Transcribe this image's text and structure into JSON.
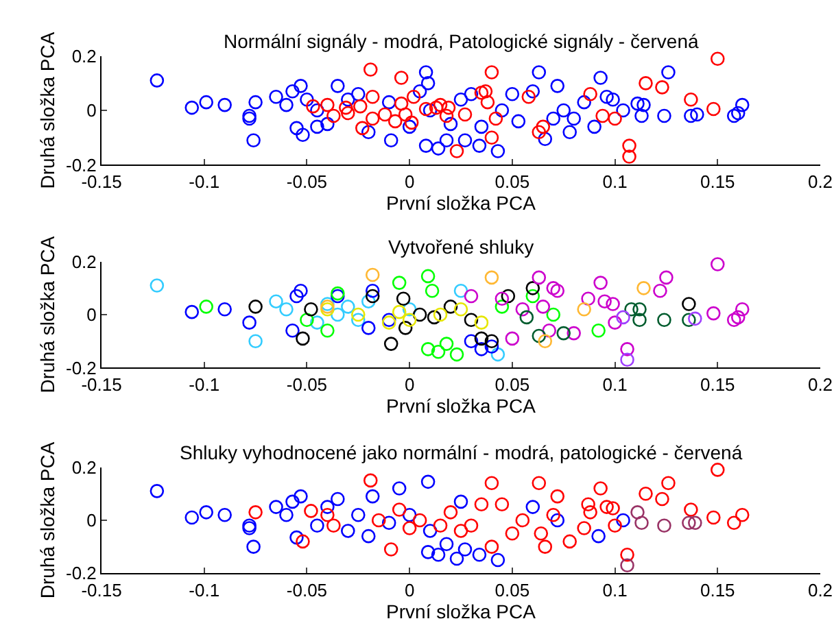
{
  "chart_data": [
    {
      "type": "scatter",
      "title": "Normální signály - modrá, Patologické signály - červená",
      "xlabel": "První složka PCA",
      "ylabel": "Druhá složka PCA",
      "xlim": [
        -0.15,
        0.2
      ],
      "xticks": [
        -0.15,
        -0.1,
        -0.05,
        0,
        0.05,
        0.1,
        0.15,
        0.2
      ],
      "ylim": [
        -0.2,
        0.2
      ],
      "yticks": [
        -0.2,
        0,
        0.2
      ],
      "marker": "circle",
      "series": [
        {
          "color": "#0000ff",
          "x": [
            -0.123,
            -0.106,
            -0.099,
            -0.09,
            -0.078,
            -0.078,
            -0.075,
            -0.076,
            -0.065,
            -0.06,
            -0.057,
            -0.055,
            -0.052,
            -0.053,
            0.008,
            0.009,
            -0.009,
            0.008,
            0.014,
            0.018,
            0.027,
            0.034,
            0.043,
            0.063,
            0.072,
            0.093,
            0.126,
            0.096,
            0.099,
            0.111,
            0.114,
            0.113,
            0.124,
            0.137,
            0.14,
            0.158,
            0.16,
            0.162,
            0.104,
            0.078,
            0.066,
            0.09,
            0.085,
            0.075,
            0.07,
            0.053,
            0.05,
            0.045,
            0.03,
            0.025,
            0.02,
            0.01,
            0.0,
            -0.01,
            -0.02,
            -0.03,
            -0.035,
            -0.04,
            -0.045,
            -0.05,
            -0.045,
            -0.025,
            0.005,
            0.035,
            0.06,
            0.08
          ],
          "values": [
            0.11,
            0.01,
            0.03,
            0.02,
            -0.03,
            -0.02,
            0.03,
            -0.11,
            0.05,
            0.02,
            0.07,
            -0.065,
            -0.09,
            0.09,
            0.14,
            0.1,
            -0.11,
            -0.13,
            -0.14,
            -0.11,
            -0.11,
            -0.13,
            -0.15,
            0.14,
            0.09,
            0.12,
            0.14,
            0.05,
            0.04,
            0.025,
            0.02,
            -0.02,
            -0.02,
            -0.02,
            -0.015,
            -0.02,
            -0.01,
            0.02,
            0.0,
            -0.08,
            -0.105,
            -0.06,
            0.03,
            0.0,
            -0.03,
            -0.04,
            0.06,
            0.0,
            0.06,
            0.04,
            -0.05,
            0.0,
            -0.06,
            0.03,
            -0.08,
            0.04,
            0.09,
            -0.05,
            0.0,
            0.04,
            -0.06,
            0.06,
            0.07,
            -0.06,
            0.07,
            -0.03
          ]
        },
        {
          "color": "#ff0000",
          "x": [
            -0.019,
            -0.004,
            0.04,
            0.15,
            0.115,
            0.123,
            0.137,
            0.148,
            0.088,
            0.058,
            0.035,
            0.037,
            0.038,
            0.042,
            0.04,
            0.023,
            0.065,
            0.063,
            0.094,
            0.1,
            0.107,
            0.107,
            -0.047,
            -0.04,
            -0.037,
            -0.031,
            -0.03,
            -0.024,
            -0.023,
            -0.018,
            -0.018,
            -0.012,
            -0.007,
            -0.004,
            -0.002,
            0.001,
            0.002,
            0.008,
            0.013,
            0.015,
            0.018,
            0.019,
            0.027
          ],
          "values": [
            0.15,
            0.12,
            0.14,
            0.19,
            0.1,
            0.085,
            0.04,
            0.005,
            0.06,
            0.05,
            0.065,
            0.07,
            0.03,
            -0.03,
            -0.1,
            -0.15,
            -0.06,
            -0.08,
            -0.02,
            -0.03,
            -0.13,
            -0.17,
            0.015,
            0.02,
            -0.02,
            0.01,
            -0.01,
            0.015,
            -0.065,
            0.05,
            -0.03,
            -0.015,
            -0.04,
            0.025,
            -0.015,
            -0.045,
            0.05,
            0.005,
            0.01,
            0.02,
            -0.02,
            0.01,
            -0.015
          ]
        }
      ]
    },
    {
      "type": "scatter",
      "title": "Vytvořené shluky",
      "xlabel": "První složka PCA",
      "ylabel": "Druhá složka PCA",
      "xlim": [
        -0.15,
        0.2
      ],
      "xticks": [
        -0.15,
        -0.1,
        -0.05,
        0,
        0.05,
        0.1,
        0.15,
        0.2
      ],
      "ylim": [
        -0.2,
        0.2
      ],
      "yticks": [
        -0.2,
        0,
        0.2
      ],
      "marker": "circle",
      "series": [
        {
          "color": "#33ccff",
          "x": [
            -0.123,
            -0.075,
            -0.065,
            -0.06,
            -0.035,
            -0.03,
            -0.025,
            -0.02,
            0.0,
            0.025,
            0.043,
            -0.04,
            -0.045
          ],
          "values": [
            0.11,
            -0.1,
            0.05,
            0.02,
            0.0,
            0.03,
            -0.02,
            0.05,
            0.02,
            0.09,
            -0.15,
            0.04,
            -0.03
          ]
        },
        {
          "color": "#0000ff",
          "x": [
            -0.106,
            -0.09,
            -0.078,
            -0.055,
            -0.053,
            -0.057,
            -0.018,
            -0.02,
            0.03,
            0.035,
            0.04,
            -0.01,
            -0.035
          ],
          "values": [
            0.01,
            0.02,
            -0.03,
            0.07,
            0.09,
            -0.06,
            0.09,
            -0.05,
            -0.1,
            -0.13,
            -0.12,
            -0.02,
            0.07
          ]
        },
        {
          "color": "#00ff00",
          "x": [
            -0.099,
            -0.035,
            -0.005,
            0.009,
            0.011,
            0.009,
            0.014,
            0.018,
            0.023,
            0.06,
            0.07,
            0.092,
            -0.05,
            -0.04,
            0.045
          ],
          "values": [
            0.03,
            0.08,
            0.12,
            0.145,
            0.09,
            -0.13,
            -0.14,
            -0.11,
            -0.15,
            0.07,
            0.0,
            -0.06,
            -0.02,
            -0.06,
            0.03
          ]
        },
        {
          "color": "#000000",
          "x": [
            -0.075,
            -0.052,
            -0.048,
            -0.018,
            -0.009,
            -0.003,
            0.005,
            0.012,
            0.02,
            0.03,
            0.035,
            0.04,
            0.048,
            0.06,
            0.136,
            -0.002
          ],
          "values": [
            0.03,
            -0.09,
            0.02,
            0.07,
            -0.11,
            0.06,
            0.0,
            -0.01,
            0.03,
            -0.02,
            -0.09,
            -0.1,
            0.07,
            0.1,
            0.04,
            -0.05
          ]
        },
        {
          "color": "#e6e600",
          "x": [
            -0.04,
            -0.025,
            -0.01,
            -0.005,
            0.0,
            0.015,
            0.025,
            0.035
          ],
          "values": [
            0.02,
            0.0,
            -0.03,
            0.01,
            -0.02,
            0.0,
            0.02,
            -0.03
          ]
        },
        {
          "color": "#cc00cc",
          "x": [
            0.063,
            0.072,
            0.07,
            0.093,
            0.095,
            0.099,
            0.125,
            0.122,
            0.15,
            0.148,
            0.158,
            0.162,
            0.16,
            0.106,
            0.087,
            0.08,
            0.068,
            0.05,
            0.045,
            0.03,
            0.055,
            0.1,
            0.065
          ],
          "values": [
            0.14,
            0.09,
            0.1,
            0.12,
            0.05,
            0.04,
            0.14,
            0.09,
            0.19,
            0.005,
            -0.02,
            0.02,
            -0.01,
            -0.13,
            0.06,
            -0.07,
            -0.06,
            -0.09,
            0.06,
            0.07,
            0.02,
            -0.03,
            0.03
          ]
        },
        {
          "color": "#005c2e",
          "x": [
            0.108,
            0.112,
            0.112,
            0.124,
            0.136,
            0.063,
            0.075,
            0.057
          ],
          "values": [
            0.02,
            0.02,
            -0.02,
            -0.02,
            -0.02,
            -0.08,
            -0.07,
            -0.01
          ]
        },
        {
          "color": "#ffb833",
          "x": [
            -0.018,
            0.04,
            0.114,
            0.066,
            0.085,
            -0.04
          ],
          "values": [
            0.15,
            0.14,
            0.1,
            -0.1,
            0.02,
            0.03
          ]
        },
        {
          "color": "#a040ff",
          "x": [
            0.106,
            0.139,
            0.104
          ],
          "values": [
            -0.17,
            -0.015,
            -0.01
          ]
        }
      ]
    },
    {
      "type": "scatter",
      "title": "Shluky vyhodnocené jako normální - modrá, patologické - červená",
      "xlabel": "První složka PCA",
      "ylabel": "Druhá složka PCA",
      "xlim": [
        -0.15,
        0.2
      ],
      "xticks": [
        -0.15,
        -0.1,
        -0.05,
        0,
        0.05,
        0.1,
        0.15,
        0.2
      ],
      "ylim": [
        -0.2,
        0.2
      ],
      "yticks": [
        -0.2,
        0,
        0.2
      ],
      "marker": "circle",
      "series": [
        {
          "color": "#0000ff",
          "x": [
            -0.123,
            -0.106,
            -0.099,
            -0.09,
            -0.078,
            -0.078,
            -0.076,
            -0.065,
            -0.06,
            -0.057,
            -0.055,
            -0.053,
            -0.045,
            -0.04,
            -0.035,
            -0.03,
            -0.025,
            -0.02,
            -0.018,
            -0.005,
            0.009,
            0.009,
            0.014,
            0.023,
            0.018,
            0.027,
            0.034,
            0.043,
            0.01,
            0.0,
            0.06,
            0.072,
            0.092,
            0.104,
            0.025,
            -0.01
          ],
          "values": [
            0.11,
            0.01,
            0.03,
            0.02,
            -0.03,
            -0.02,
            -0.1,
            0.05,
            0.02,
            0.07,
            -0.065,
            0.09,
            -0.02,
            0.05,
            0.08,
            -0.04,
            0.02,
            -0.06,
            0.09,
            0.12,
            0.145,
            -0.12,
            -0.13,
            -0.145,
            -0.09,
            -0.11,
            -0.13,
            -0.15,
            -0.04,
            0.02,
            0.05,
            0.0,
            -0.06,
            0.0,
            0.07,
            -0.01
          ]
        },
        {
          "color": "#ff0000",
          "x": [
            -0.075,
            -0.052,
            -0.048,
            -0.04,
            -0.037,
            -0.009,
            -0.019,
            0.04,
            0.063,
            0.072,
            0.093,
            0.126,
            0.15,
            0.148,
            0.158,
            0.162,
            0.137,
            0.123,
            0.115,
            0.106,
            0.1,
            0.087,
            0.088,
            0.096,
            0.099,
            0.078,
            0.066,
            0.064,
            0.055,
            0.045,
            0.04,
            0.035,
            0.03,
            0.02,
            0.015,
            0.005,
            0.0,
            -0.005,
            -0.015,
            0.025,
            0.05,
            0.085,
            0.07
          ],
          "values": [
            0.03,
            -0.08,
            0.035,
            0.02,
            -0.02,
            -0.11,
            0.15,
            0.14,
            0.14,
            0.09,
            0.12,
            0.14,
            0.19,
            0.01,
            -0.01,
            0.02,
            0.04,
            0.08,
            0.1,
            -0.13,
            -0.02,
            0.06,
            0.03,
            0.05,
            0.045,
            -0.08,
            -0.1,
            -0.05,
            0.0,
            0.06,
            -0.1,
            0.06,
            -0.02,
            0.03,
            -0.02,
            0.0,
            -0.03,
            0.04,
            0.0,
            -0.04,
            -0.05,
            -0.03,
            0.02
          ]
        },
        {
          "color": "#993366",
          "x": [
            0.111,
            0.113,
            0.124,
            0.136,
            0.139,
            0.106
          ],
          "values": [
            0.03,
            -0.01,
            -0.02,
            -0.01,
            -0.01,
            -0.17
          ]
        }
      ]
    }
  ]
}
